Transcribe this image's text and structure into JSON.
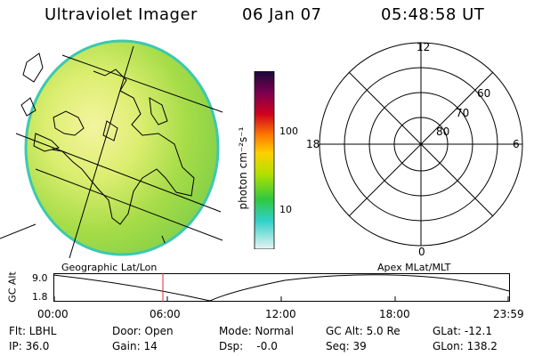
{
  "header": {
    "instrument": "Ultraviolet Imager",
    "date": "06 Jan 07",
    "time": "05:48:58 UT"
  },
  "panels": {
    "geo_label": "Geographic Lat/Lon",
    "apex_label": "Apex MLat/MLT"
  },
  "colorbar": {
    "unit_label": "photon cm⁻²s⁻¹",
    "ticks": [
      "100",
      "10"
    ],
    "colors": [
      "#1a0a3a",
      "#7a0050",
      "#d00020",
      "#ff7a00",
      "#ffd000",
      "#b0e000",
      "#30c840",
      "#30d0c8",
      "#e8f4f4"
    ]
  },
  "polar": {
    "mlt_labels": {
      "top": "12",
      "right": "6",
      "bottom": "0",
      "left": "18"
    },
    "lat_labels": [
      "60",
      "70",
      "80"
    ]
  },
  "altitude_plot": {
    "ylabel": "GC Alt",
    "ytick_high": "9.0",
    "ytick_low": "1.8",
    "xticks": [
      "00:00",
      "06:00",
      "12:00",
      "18:00",
      "23:59"
    ],
    "marker_color": "#d03030"
  },
  "status": {
    "flt": "Flt: LBHL",
    "ip": "IP: 36.0",
    "door": "Door: Open",
    "gain": "Gain: 14",
    "mode": "Mode: Normal",
    "dsp": "Dsp:    -0.0",
    "gcalt": "GC Alt: 5.0 Re",
    "seq": "Seq: 39",
    "glat": "GLat: -12.1",
    "glon": "GLon: 138.2"
  }
}
